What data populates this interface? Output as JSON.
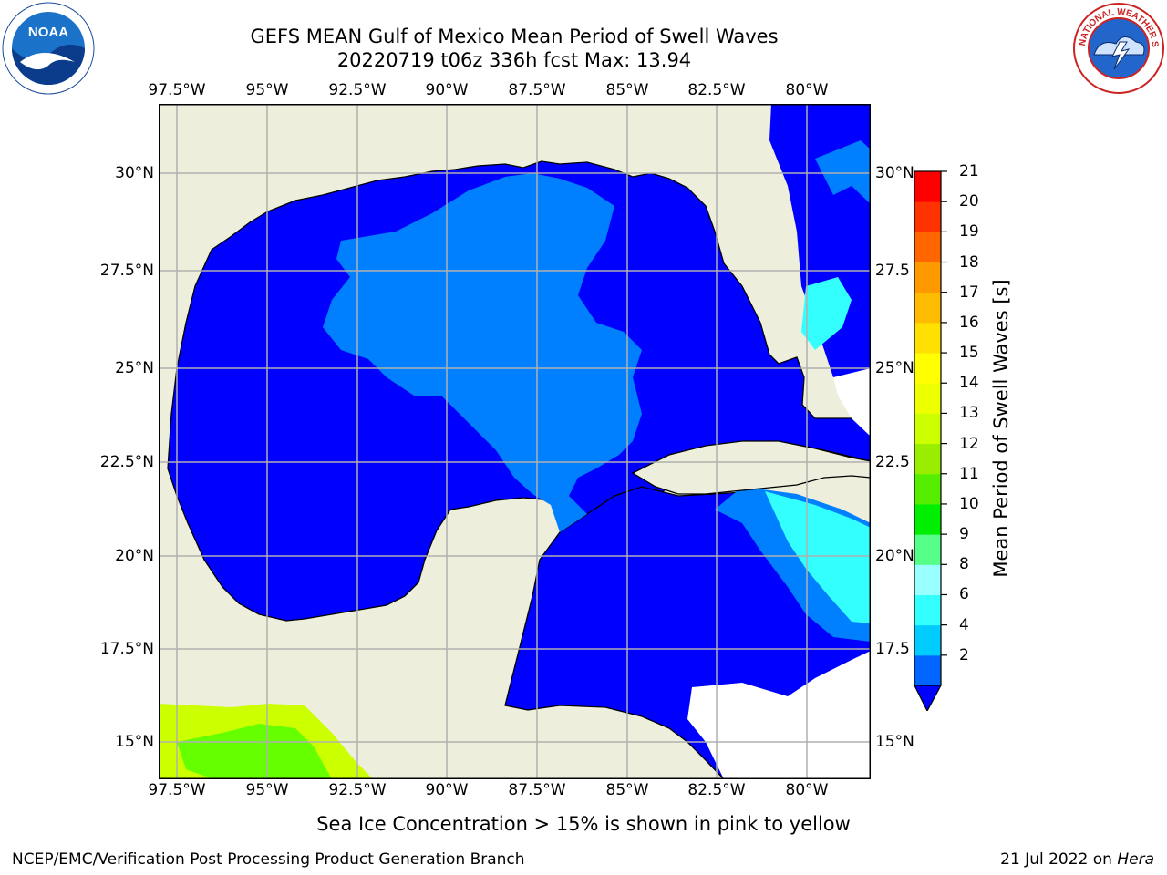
{
  "title": {
    "line1": "GEFS MEAN Gulf of Mexico Mean Period of Swell Waves",
    "line2": "20220719 t06z 336h fcst   Max: 13.94"
  },
  "logos": {
    "left": "noaa-logo",
    "right": "national-weather-service-logo"
  },
  "map": {
    "lon_ticks": [
      "97.5°W",
      "95°W",
      "92.5°W",
      "90°W",
      "87.5°W",
      "85°W",
      "82.5°W",
      "80°W"
    ],
    "lat_ticks_left": [
      "30°N",
      "27.5°N",
      "25°N",
      "22.5°N",
      "20°N",
      "17.5°N",
      "15°N"
    ],
    "lat_ticks_right": [
      "30°N",
      "27.5",
      "25°N",
      "22.5",
      "20°N",
      "17.5",
      "15°N"
    ],
    "colors": {
      "land": "#eeeedc",
      "ocean_low": "#0000ff",
      "ocean_mid": "#0080ff",
      "ocean_high": "#00e5ff",
      "ocean_cyan": "#33ffff",
      "pacific_yellow": "#ccff00",
      "pacific_green": "#66ff00",
      "grid": "#b0b0b0"
    }
  },
  "colorbar": {
    "label": "Mean Period of Swell Waves [s]",
    "ticks": [
      "21",
      "20",
      "19",
      "18",
      "17",
      "16",
      "15",
      "14",
      "13",
      "12",
      "11",
      "10",
      "9",
      "8",
      "6",
      "4",
      "2"
    ],
    "colors": [
      "#0066ff",
      "#00ccff",
      "#33ffff",
      "#99ffff",
      "#55ff88",
      "#00ee00",
      "#55ee00",
      "#99ee00",
      "#ccff00",
      "#eeff00",
      "#ffff00",
      "#ffe000",
      "#ffbb00",
      "#ff9900",
      "#ff6600",
      "#ff3300",
      "#ff0000"
    ]
  },
  "footnote": "Sea Ice Concentration > 15% is shown in pink to yellow",
  "credit": {
    "left": "NCEP/EMC/Verification Post Processing Product Generation Branch",
    "right_date": "21 Jul 2022 on ",
    "right_host": "Hera"
  }
}
